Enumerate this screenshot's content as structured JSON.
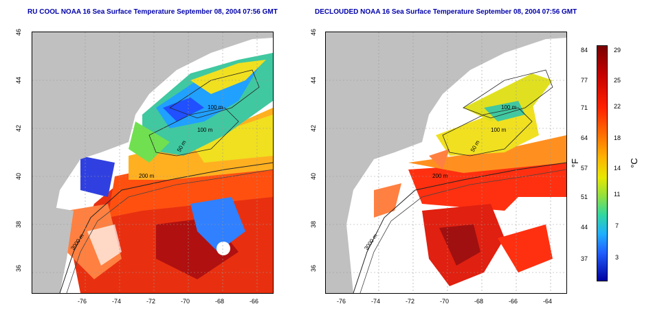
{
  "left_title": "RU COOL NOAA 16 Sea Surface Temperature September 08, 2004 07:56 GMT",
  "right_title": "DECLOUDED NOAA 16 Sea Surface Temperature September 08, 2004 07:56 GMT",
  "lat_ticks": [
    "46",
    "44",
    "42",
    "40",
    "38",
    "36"
  ],
  "lon_ticks": [
    "-76",
    "-74",
    "-72",
    "-70",
    "-68",
    "-66",
    "-64"
  ],
  "contour_labels": [
    "100 m",
    "100 m",
    "50 m",
    "200 m",
    "3000 m"
  ],
  "colorbar": {
    "fahrenheit_ticks": [
      "84",
      "77",
      "71",
      "64",
      "57",
      "51",
      "44",
      "37"
    ],
    "celsius_ticks": [
      "29",
      "25",
      "22",
      "18",
      "14",
      "11",
      "7",
      "3"
    ],
    "unit_f": "°F",
    "unit_c": "°C"
  },
  "colors": {
    "land": "#c0c0c0",
    "title": "#0000aa"
  }
}
